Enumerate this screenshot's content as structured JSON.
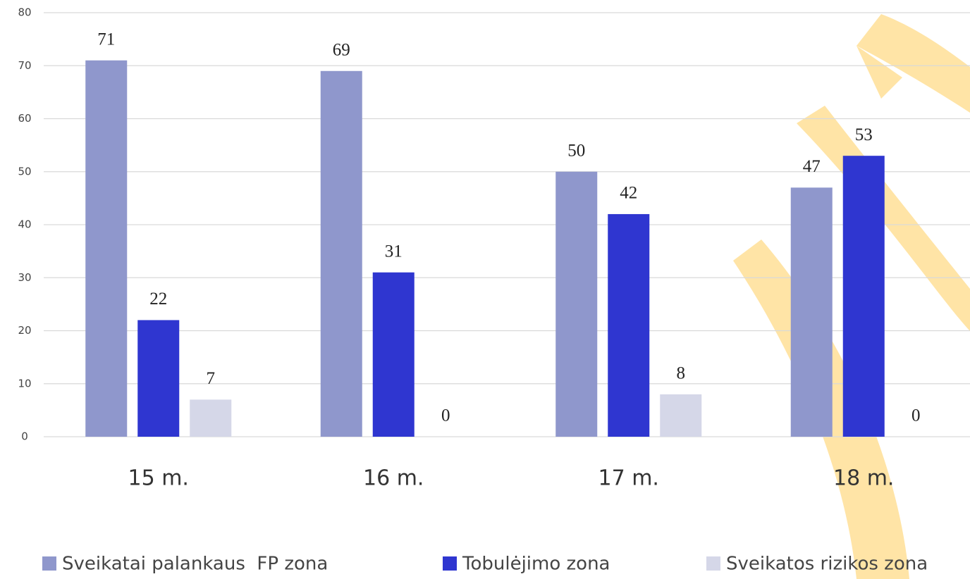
{
  "chart_data": {
    "type": "bar",
    "categories": [
      "15 m.",
      "16 m.",
      "17 m.",
      "18 m."
    ],
    "series": [
      {
        "name": "Sveikatai palankaus  FP zona",
        "color": "#8f97cc",
        "values": [
          71,
          69,
          50,
          47
        ]
      },
      {
        "name": "Tobulėjimo zona",
        "color": "#2f36d0",
        "values": [
          22,
          31,
          42,
          53
        ]
      },
      {
        "name": "Sveikatos rizikos zona",
        "color": "#d5d7e8",
        "values": [
          7,
          0,
          8,
          0
        ]
      }
    ],
    "ylim": [
      0,
      80
    ],
    "yticks": [
      0,
      10,
      20,
      30,
      40,
      50,
      60,
      70,
      80
    ],
    "grid": true,
    "legend": "bottom"
  }
}
